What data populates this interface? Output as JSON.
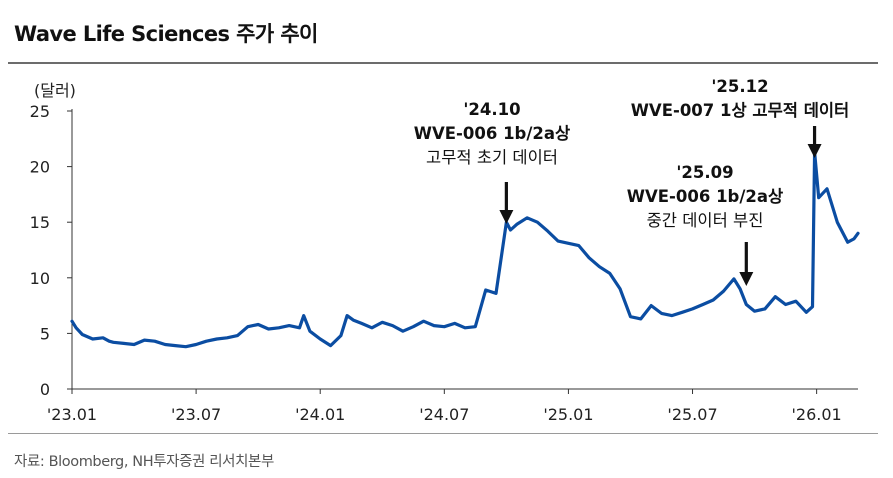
{
  "page": {
    "title": "Wave Life Sciences 주가 추이",
    "source": "자료: Bloomberg, NH투자증권 리서치본부"
  },
  "colors": {
    "line": "#0b4da2",
    "arrow": "#111111",
    "axis": "#333333",
    "frame": "#6c6c6c"
  },
  "chart_data": {
    "type": "line",
    "title": "Wave Life Sciences 주가 추이",
    "ylabel": "(달러)",
    "xlabel": "",
    "ylim": [
      0,
      25
    ],
    "yticks": [
      0,
      5,
      10,
      15,
      20,
      25
    ],
    "xticks": [
      {
        "label": "'23.01",
        "t": 0
      },
      {
        "label": "'23.07",
        "t": 6
      },
      {
        "label": "'24.01",
        "t": 12
      },
      {
        "label": "'24.07",
        "t": 18
      },
      {
        "label": "'25.01",
        "t": 24
      },
      {
        "label": "'25.07",
        "t": 30
      },
      {
        "label": "'26.01",
        "t": 36
      }
    ],
    "xlim_months": [
      0,
      38
    ],
    "x_unit": "months since 2023-01",
    "series": [
      {
        "name": "Wave Life Sciences",
        "x": [
          0,
          0.2,
          0.5,
          1,
          1.5,
          1.8,
          2,
          2.5,
          3,
          3.5,
          4,
          4.5,
          5,
          5.5,
          6,
          6.5,
          7,
          7.5,
          8,
          8.5,
          9,
          9.5,
          10,
          10.5,
          11,
          11.2,
          11.5,
          12,
          12.5,
          13,
          13.3,
          13.6,
          14,
          14.5,
          15,
          15.5,
          16,
          16.5,
          17,
          17.5,
          18,
          18.5,
          19,
          19.5,
          20,
          20.5,
          21,
          21.2,
          21.5,
          22,
          22.5,
          23,
          23.5,
          24,
          24.5,
          25,
          25.5,
          26,
          26.5,
          27,
          27.5,
          28,
          28.5,
          29,
          29.5,
          30,
          30.5,
          31,
          31.5,
          32,
          32.3,
          32.6,
          33,
          33.5,
          34,
          34.5,
          35,
          35.5,
          35.8,
          35.9,
          36.1,
          36.5,
          37,
          37.5,
          37.8,
          38
        ],
        "values": [
          6.1,
          5.5,
          4.9,
          4.5,
          4.6,
          4.3,
          4.2,
          4.1,
          4.0,
          4.4,
          4.3,
          4.0,
          3.9,
          3.8,
          4.0,
          4.3,
          4.5,
          4.6,
          4.8,
          5.6,
          5.8,
          5.4,
          5.5,
          5.7,
          5.5,
          6.6,
          5.2,
          4.5,
          3.9,
          4.8,
          6.6,
          6.2,
          5.9,
          5.5,
          6.0,
          5.7,
          5.2,
          5.6,
          6.1,
          5.7,
          5.6,
          5.9,
          5.5,
          5.6,
          8.9,
          8.6,
          15.0,
          14.3,
          14.8,
          15.4,
          15.0,
          14.2,
          13.3,
          13.1,
          12.9,
          11.8,
          11.0,
          10.4,
          9.0,
          6.5,
          6.3,
          7.5,
          6.8,
          6.6,
          6.9,
          7.2,
          7.6,
          8.0,
          8.8,
          9.9,
          9.0,
          7.6,
          7.0,
          7.2,
          8.3,
          7.6,
          7.9,
          6.9,
          7.4,
          21.3,
          17.2,
          18.0,
          15.0,
          13.2,
          13.5,
          14.0
        ]
      }
    ],
    "annotations": [
      {
        "title": "'24.10",
        "lines": [
          "WVE-006 1b/2a상",
          "고무적 초기 데이터"
        ],
        "x": 21,
        "y": 15.0
      },
      {
        "title": "'25.09",
        "lines": [
          "WVE-006 1b/2a상",
          "중간 데이터 부진"
        ],
        "x": 32.6,
        "y": 9.0
      },
      {
        "title": "'25.12",
        "lines": [
          "WVE-007 1상 고무적 데이터"
        ],
        "x": 35.9,
        "y": 21.3
      }
    ]
  }
}
